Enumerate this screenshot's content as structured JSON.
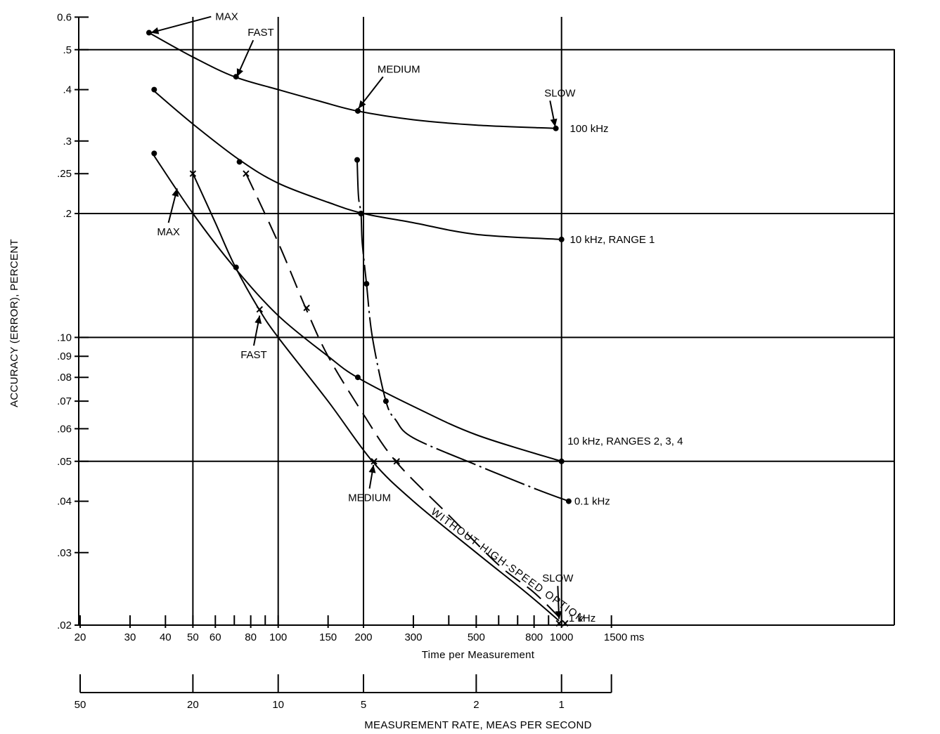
{
  "chart_data": {
    "type": "line",
    "title": "",
    "xlabel": "Time per Measurement",
    "xunit": "ms",
    "ylabel": "ACCURACY (ERROR), PERCENT",
    "x2label": "MEASUREMENT RATE, MEAS PER SECOND",
    "xscale": "log",
    "yscale": "log",
    "xlim": [
      20,
      1500
    ],
    "ylim": [
      0.02,
      0.6
    ],
    "grid": "major lines at 50, 100, 200, 1000 ms and 0.5, 0.2, 0.1, 0.05 percent",
    "x_ticks": [
      {
        "value": 20,
        "label": "20"
      },
      {
        "value": 30,
        "label": "30"
      },
      {
        "value": 40,
        "label": "40"
      },
      {
        "value": 50,
        "label": "50"
      },
      {
        "value": 60,
        "label": "60"
      },
      {
        "value": 80,
        "label": "80"
      },
      {
        "value": 100,
        "label": "100"
      },
      {
        "value": 150,
        "label": "150"
      },
      {
        "value": 200,
        "label": "200"
      },
      {
        "value": 300,
        "label": "300"
      },
      {
        "value": 500,
        "label": "500"
      },
      {
        "value": 800,
        "label": "800"
      },
      {
        "value": 1000,
        "label": "1000"
      },
      {
        "value": 1500,
        "label": "1500 ms"
      }
    ],
    "x_minor_ticks": [
      70,
      90,
      400,
      600,
      700,
      900
    ],
    "y_ticks": [
      {
        "value": 0.6,
        "label": "0.6"
      },
      {
        "value": 0.5,
        "label": ".5"
      },
      {
        "value": 0.4,
        "label": ".4"
      },
      {
        "value": 0.3,
        "label": ".3"
      },
      {
        "value": 0.25,
        "label": ".25"
      },
      {
        "value": 0.2,
        "label": ".2"
      },
      {
        "value": 0.1,
        "label": ".10"
      },
      {
        "value": 0.09,
        "label": ".09"
      },
      {
        "value": 0.08,
        "label": ".08"
      },
      {
        "value": 0.07,
        "label": ".07"
      },
      {
        "value": 0.06,
        "label": ".06"
      },
      {
        "value": 0.05,
        "label": ".05"
      },
      {
        "value": 0.04,
        "label": ".04"
      },
      {
        "value": 0.03,
        "label": ".03"
      },
      {
        "value": 0.02,
        "label": ".02"
      }
    ],
    "x2_ticks": [
      {
        "value": 20,
        "label": "50"
      },
      {
        "value": 50,
        "label": "20"
      },
      {
        "value": 100,
        "label": "10"
      },
      {
        "value": 200,
        "label": "5"
      },
      {
        "value": 500,
        "label": "2"
      },
      {
        "value": 1000,
        "label": "1"
      },
      {
        "value": 1500,
        "label": ""
      }
    ],
    "series": [
      {
        "name": "100 kHz",
        "style": "solid",
        "points": [
          [
            35,
            0.55
          ],
          [
            50,
            0.48
          ],
          [
            70,
            0.43
          ],
          [
            100,
            0.4
          ],
          [
            140,
            0.375
          ],
          [
            190,
            0.355
          ],
          [
            300,
            0.338
          ],
          [
            500,
            0.328
          ],
          [
            950,
            0.322
          ]
        ],
        "markers": [
          {
            "x": 35,
            "y": 0.55,
            "m": "dot"
          },
          {
            "x": 71,
            "y": 0.43,
            "m": "dot"
          },
          {
            "x": 191,
            "y": 0.355,
            "m": "dot"
          },
          {
            "x": 955,
            "y": 0.322,
            "m": "dot"
          }
        ]
      },
      {
        "name": "10 kHz, RANGE 1",
        "style": "solid",
        "points": [
          [
            36,
            0.4
          ],
          [
            50,
            0.33
          ],
          [
            73,
            0.27
          ],
          [
            100,
            0.237
          ],
          [
            150,
            0.213
          ],
          [
            200,
            0.2
          ],
          [
            300,
            0.19
          ],
          [
            500,
            0.178
          ],
          [
            1000,
            0.173
          ]
        ],
        "markers": [
          {
            "x": 36.5,
            "y": 0.4,
            "m": "dot"
          },
          {
            "x": 73,
            "y": 0.267,
            "m": "dot"
          },
          {
            "x": 196,
            "y": 0.2,
            "m": "dot"
          },
          {
            "x": 1000,
            "y": 0.173,
            "m": "dot"
          }
        ]
      },
      {
        "name": "10 kHz, RANGES 2, 3, 4",
        "style": "solid",
        "points": [
          [
            36,
            0.28
          ],
          [
            50,
            0.2
          ],
          [
            70,
            0.148
          ],
          [
            100,
            0.113
          ],
          [
            150,
            0.09
          ],
          [
            190,
            0.08
          ],
          [
            300,
            0.068
          ],
          [
            500,
            0.058
          ],
          [
            1000,
            0.05
          ]
        ],
        "markers": [
          {
            "x": 36.5,
            "y": 0.28,
            "m": "dot"
          },
          {
            "x": 71,
            "y": 0.148,
            "m": "dot"
          },
          {
            "x": 191,
            "y": 0.08,
            "m": "dot"
          },
          {
            "x": 1000,
            "y": 0.05,
            "m": "dot"
          }
        ]
      },
      {
        "name": "0.1 kHz",
        "style": "dash-dot",
        "points": [
          [
            190,
            0.27
          ],
          [
            192,
            0.22
          ],
          [
            196,
            0.2
          ],
          [
            198,
            0.17
          ],
          [
            205,
            0.135
          ],
          [
            215,
            0.1
          ],
          [
            240,
            0.07
          ],
          [
            260,
            0.063
          ],
          [
            300,
            0.057
          ],
          [
            500,
            0.049
          ],
          [
            800,
            0.043
          ],
          [
            1060,
            0.04
          ]
        ],
        "markers": [
          {
            "x": 190,
            "y": 0.27,
            "m": "dot"
          },
          {
            "x": 196,
            "y": 0.2,
            "m": "dot"
          },
          {
            "x": 205,
            "y": 0.135,
            "m": "dot"
          },
          {
            "x": 240,
            "y": 0.07,
            "m": "dot"
          },
          {
            "x": 1060,
            "y": 0.04,
            "m": "dot"
          }
        ]
      },
      {
        "name": "1 kHz",
        "style": "solid",
        "points": [
          [
            50,
            0.25
          ],
          [
            60,
            0.19
          ],
          [
            70,
            0.15
          ],
          [
            85,
            0.118
          ],
          [
            100,
            0.1
          ],
          [
            150,
            0.07
          ],
          [
            215,
            0.05
          ],
          [
            300,
            0.04
          ],
          [
            500,
            0.03
          ],
          [
            750,
            0.024
          ],
          [
            980,
            0.0205
          ]
        ],
        "markers": [
          {
            "x": 50,
            "y": 0.25,
            "m": "x"
          },
          {
            "x": 86,
            "y": 0.117,
            "m": "x"
          },
          {
            "x": 218,
            "y": 0.05,
            "m": "x"
          },
          {
            "x": 980,
            "y": 0.0202,
            "m": "x"
          }
        ]
      },
      {
        "name": "WITHOUT HIGH-SPEED OPTION",
        "style": "dash",
        "points": [
          [
            77,
            0.25
          ],
          [
            100,
            0.17
          ],
          [
            125,
            0.118
          ],
          [
            150,
            0.09
          ],
          [
            200,
            0.065
          ],
          [
            260,
            0.05
          ],
          [
            400,
            0.037
          ],
          [
            600,
            0.028
          ],
          [
            800,
            0.024
          ],
          [
            1030,
            0.0202
          ]
        ],
        "markers": [
          {
            "x": 77,
            "y": 0.25,
            "m": "x"
          },
          {
            "x": 126,
            "y": 0.118,
            "m": "x"
          },
          {
            "x": 262,
            "y": 0.05,
            "m": "x"
          },
          {
            "x": 1030,
            "y": 0.0202,
            "m": "x"
          }
        ]
      }
    ],
    "annotations": [
      {
        "text": "MAX",
        "tx": 60,
        "ty": 0.59,
        "ax": 35.5,
        "ay": 0.55,
        "anchor": "start"
      },
      {
        "text": "FAST",
        "tx": 78,
        "ty": 0.54,
        "ax": 71.5,
        "ay": 0.43,
        "anchor": "start"
      },
      {
        "text": "MEDIUM",
        "tx": 224,
        "ty": 0.44,
        "ax": 192,
        "ay": 0.36,
        "anchor": "start"
      },
      {
        "text": "SLOW",
        "tx": 870,
        "ty": 0.385,
        "ax": 950,
        "ay": 0.325,
        "anchor": "start"
      },
      {
        "text": "MAX",
        "tx": 41,
        "ty": 0.177,
        "ax": 44,
        "ay": 0.23,
        "anchor": "middle"
      },
      {
        "text": "FAST",
        "tx": 82,
        "ty": 0.089,
        "ax": 86,
        "ay": 0.113,
        "anchor": "middle"
      },
      {
        "text": "MEDIUM",
        "tx": 210,
        "ty": 0.04,
        "ax": 217,
        "ay": 0.049,
        "anchor": "middle"
      },
      {
        "text": "SLOW",
        "tx": 970,
        "ty": 0.0255,
        "ax": 980,
        "ay": 0.0207,
        "anchor": "middle"
      }
    ],
    "series_labels": [
      {
        "text": "100 kHz",
        "x": 1070,
        "y": 0.322
      },
      {
        "text": "10 kHz, RANGE 1",
        "x": 1070,
        "y": 0.173
      },
      {
        "text": "10 kHz, RANGES 2, 3, 4",
        "x": 1050,
        "y": 0.056
      },
      {
        "text": "0.1 kHz",
        "x": 1110,
        "y": 0.04
      },
      {
        "text": "1 kHz",
        "x": 1060,
        "y": 0.0208
      },
      {
        "text": "WITHOUT HIGH-SPEED OPTION",
        "x": 350,
        "y": 0.038,
        "rotate": 36
      }
    ]
  }
}
